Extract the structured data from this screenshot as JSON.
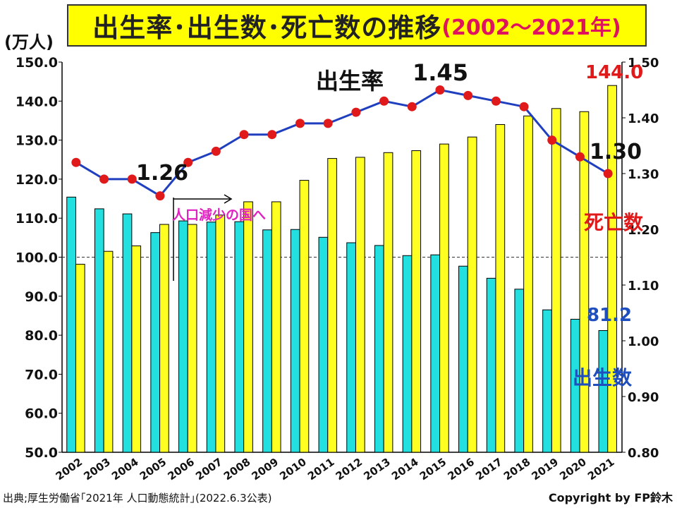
{
  "title": "出生率･出生数･死亡数の推移",
  "title_period": "(2002～2021年)",
  "left_axis_unit": "(万人)",
  "source": "出典;厚生労働省｢2021年 人口動態統計｣(2022.6.3公表)",
  "copyright": "Copyright by FP鈴木",
  "annotations": {
    "birth_rate_label": "出生率",
    "death_label": "死亡数",
    "birth_label": "出生数",
    "population_decline": "人口減少の国へ",
    "rate_2005": "1.26",
    "rate_2015": "1.45",
    "rate_2021": "1.30",
    "death_2021": "144.0",
    "birth_2021": "81.2"
  },
  "colors": {
    "births": "#22e0e0",
    "deaths": "#ffff22",
    "rate_line": "#1f3fbf",
    "rate_marker": "#e01a1a",
    "death_label": "#e01a1a",
    "birth_label": "#1f4fbf",
    "decline_label": "#e020c0"
  },
  "chart_data": {
    "type": "bar",
    "categories": [
      "2002",
      "2003",
      "2004",
      "2005",
      "2006",
      "2007",
      "2008",
      "2009",
      "2010",
      "2011",
      "2012",
      "2013",
      "2014",
      "2015",
      "2016",
      "2017",
      "2018",
      "2019",
      "2020",
      "2021"
    ],
    "series": [
      {
        "name": "出生数",
        "axis": "left",
        "type": "bar",
        "values": [
          115.4,
          112.4,
          111.1,
          106.3,
          109.3,
          109.0,
          109.1,
          107.0,
          107.1,
          105.1,
          103.7,
          103.0,
          100.4,
          100.6,
          97.7,
          94.6,
          91.8,
          86.5,
          84.1,
          81.2
        ]
      },
      {
        "name": "死亡数",
        "axis": "left",
        "type": "bar",
        "values": [
          98.2,
          101.5,
          102.9,
          108.4,
          108.4,
          110.8,
          114.2,
          114.2,
          119.7,
          125.3,
          125.6,
          126.8,
          127.3,
          129.0,
          130.8,
          134.0,
          136.2,
          138.1,
          137.3,
          144.0
        ]
      },
      {
        "name": "出生率",
        "axis": "right",
        "type": "line",
        "values": [
          1.32,
          1.29,
          1.29,
          1.26,
          1.32,
          1.34,
          1.37,
          1.37,
          1.39,
          1.39,
          1.41,
          1.43,
          1.42,
          1.45,
          1.44,
          1.43,
          1.42,
          1.36,
          1.33,
          1.3
        ]
      }
    ],
    "left_axis": {
      "min": 50,
      "max": 150,
      "ticks": [
        50.0,
        60.0,
        70.0,
        80.0,
        90.0,
        100.0,
        110.0,
        120.0,
        130.0,
        140.0,
        150.0
      ]
    },
    "right_axis": {
      "min": 0.8,
      "max": 1.5,
      "ticks": [
        0.8,
        0.9,
        1.0,
        1.1,
        1.2,
        1.3,
        1.4,
        1.5
      ]
    },
    "reference_line": 100,
    "grid": false,
    "legend": "none"
  }
}
